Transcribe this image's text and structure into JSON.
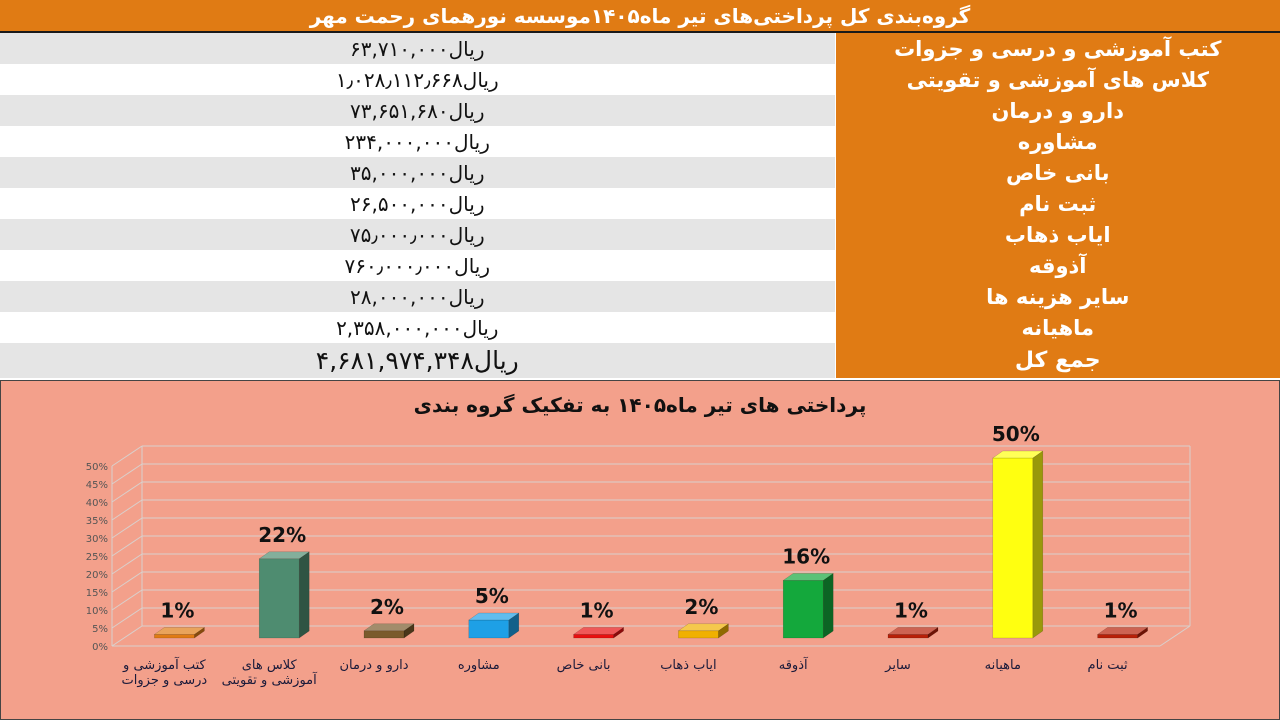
{
  "header": {
    "title": "گروه‌بندی کل پرداختی‌های تیر ماه۱۴۰۵موسسه نورهمای رحمت مهر"
  },
  "table": {
    "rows": [
      {
        "category": "کتب آموزشی و درسی و جزوات",
        "amount": "۶۳,۷۱۰,۰۰۰ریال"
      },
      {
        "category": "کلاس های آموزشی و تقویتی",
        "amount": "۱٫۰۲۸٫۱۱۲٫۶۶۸ریال"
      },
      {
        "category": "دارو و درمان",
        "amount": "۷۳,۶۵۱,۶۸۰ریال"
      },
      {
        "category": "مشاوره",
        "amount": "۲۳۴,۰۰۰,۰۰۰ریال"
      },
      {
        "category": "بانی خاص",
        "amount": "۳۵,۰۰۰,۰۰۰ریال"
      },
      {
        "category": "ثبت نام",
        "amount": "۲۶,۵۰۰,۰۰۰ریال"
      },
      {
        "category": "ایاب ذهاب",
        "amount": "۷۵٫۰۰۰٫۰۰۰ریال"
      },
      {
        "category": "آذوقه",
        "amount": "۷۶۰٫۰۰۰٫۰۰۰ریال"
      },
      {
        "category": "سایر هزینه ها",
        "amount": "۲۸,۰۰۰,۰۰۰ریال"
      },
      {
        "category": "ماهیانه",
        "amount": "۲,۳۵۸,۰۰۰,۰۰۰ریال"
      }
    ],
    "total": {
      "category": "جمع کل",
      "amount": "۴,۶۸۱,۹۷۴,۳۴۸ریال"
    }
  },
  "chart_data": {
    "type": "bar",
    "title": "پرداختی های تیر ماه۱۴۰۵ به تفکیک گروه بندی",
    "categories": [
      "کتب آموزشی و درسی و جزوات",
      "کلاس های آموزشی و تقویتی",
      "دارو و درمان",
      "مشاوره",
      "بانی خاص",
      "ایاب ذهاب",
      "آذوقه",
      "سایر",
      "ماهیانه",
      "ثبت نام"
    ],
    "values": [
      1,
      22,
      2,
      5,
      1,
      2,
      16,
      1,
      50,
      1
    ],
    "data_labels": [
      "1%",
      "22%",
      "2%",
      "5%",
      "1%",
      "2%",
      "16%",
      "1%",
      "50%",
      "1%"
    ],
    "colors": [
      "#E07B14",
      "#4E8C70",
      "#7A5A2C",
      "#1EA0E6",
      "#E81010",
      "#F0B000",
      "#14A83C",
      "#B82008",
      "#FFFF10",
      "#B82008"
    ],
    "y_ticks": [
      "0%",
      "5%",
      "10%",
      "15%",
      "20%",
      "25%",
      "30%",
      "35%",
      "40%",
      "45%",
      "50%"
    ],
    "ylim": [
      0,
      50
    ],
    "grid": true,
    "style": "3d-column"
  }
}
